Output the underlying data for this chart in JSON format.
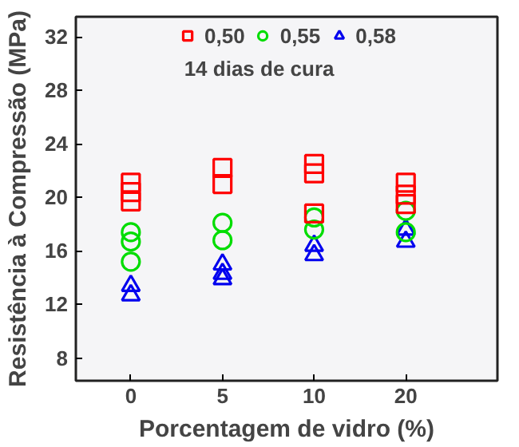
{
  "chart_data": {
    "type": "scatter",
    "xlabel": "Porcentagem de vidro (%)",
    "ylabel": "Resistência à Compressão (MPa)",
    "categories": [
      "0",
      "5",
      "10",
      "20"
    ],
    "ylim": [
      6.3,
      33.5
    ],
    "yticks": [
      8,
      12,
      16,
      20,
      24,
      28,
      32
    ],
    "legend": "top",
    "grid": false,
    "annotations": [
      "14 dias de cura"
    ],
    "series": [
      {
        "name": "0,50",
        "color": "#ff0000",
        "marker": "square",
        "x": [
          "0",
          "0",
          "0",
          "5",
          "5",
          "10",
          "10",
          "10",
          "20",
          "20",
          "20"
        ],
        "values": [
          21.1,
          20.4,
          19.7,
          22.2,
          21.0,
          22.5,
          21.8,
          18.8,
          21.1,
          20.2,
          19.5
        ]
      },
      {
        "name": "0,55",
        "color": "#00dd00",
        "marker": "circle",
        "x": [
          "0",
          "0",
          "0",
          "5",
          "5",
          "10",
          "10",
          "20",
          "20"
        ],
        "values": [
          17.4,
          16.7,
          15.2,
          18.1,
          16.8,
          18.5,
          17.6,
          19.0,
          17.4
        ]
      },
      {
        "name": "0,58",
        "color": "#0000ee",
        "marker": "triangle",
        "x": [
          "0",
          "0",
          "5",
          "5",
          "5",
          "10",
          "10",
          "20",
          "20"
        ],
        "values": [
          13.4,
          12.7,
          15.0,
          14.3,
          13.9,
          16.4,
          15.7,
          17.6,
          16.7
        ]
      }
    ]
  }
}
